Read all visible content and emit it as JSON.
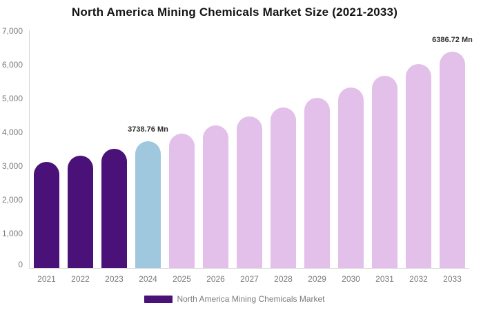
{
  "header": {
    "title": "North America Mining Chemicals Market Size (2021-2033)"
  },
  "chart_data": {
    "type": "bar",
    "title": "North America Mining Chemicals Market Size (2021-2033)",
    "categories": [
      "2021",
      "2022",
      "2023",
      "2024",
      "2025",
      "2026",
      "2027",
      "2028",
      "2029",
      "2030",
      "2031",
      "2032",
      "2033"
    ],
    "values": [
      3127,
      3319,
      3523,
      3738.76,
      3968,
      4211,
      4469,
      4743,
      5033,
      5342,
      5669,
      6016,
      6386.72
    ],
    "value_unit": "Mn",
    "xlabel": "",
    "ylabel": "",
    "ylim": [
      0,
      7000
    ],
    "y_tick_step": 1000,
    "y_tick_labels": [
      "0",
      "1,000",
      "2,000",
      "3,000",
      "4,000",
      "5,000",
      "6,000",
      "7,000"
    ],
    "grid": false,
    "data_labels": [
      {
        "index": 3,
        "text": "3738.76 Mn"
      },
      {
        "index": 12,
        "text": "6386.72 Mn"
      }
    ],
    "bar_colors": [
      "#4A1179",
      "#4A1179",
      "#4A1179",
      "#9FC8DE",
      "#E3C0EA",
      "#E3C0EA",
      "#E3C0EA",
      "#E3C0EA",
      "#E3C0EA",
      "#E3C0EA",
      "#E3C0EA",
      "#E3C0EA",
      "#E3C0EA"
    ],
    "legend": {
      "label": "North America Mining Chemicals Market",
      "position": "bottom-center",
      "swatch_color": "#4A1179"
    },
    "axis_color": "#D6D6D6",
    "tick_label_color": "#7A7A7A",
    "data_label_color": "#2F2F2F",
    "title_color": "#141414"
  }
}
